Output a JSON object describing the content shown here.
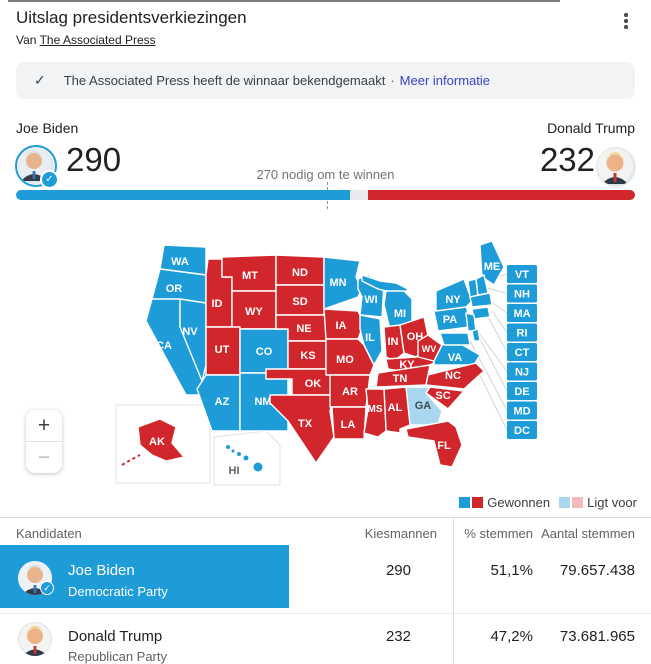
{
  "header": {
    "title": "Uitslag presidentsverkiezingen",
    "source_prefix": "Van",
    "source_link": "The Associated Press"
  },
  "banner": {
    "text": "The Associated Press heeft de winnaar bekendgemaakt",
    "separator": "·",
    "link_label": "Meer informatie"
  },
  "scoreboard": {
    "left_name": "Joe Biden",
    "left_votes": "290",
    "right_name": "Donald Trump",
    "right_votes": "232",
    "threshold_note": "270 nodig om te winnen",
    "bar": {
      "blue_pct": 53.9,
      "gray_pct": 3.0,
      "red_pct": 43.1,
      "marker_pct": 50.2
    }
  },
  "map": {
    "zoom_in_label": "+",
    "zoom_out_label": "−",
    "states": [
      {
        "abbr": "WA",
        "result": "dem"
      },
      {
        "abbr": "OR",
        "result": "dem"
      },
      {
        "abbr": "CA",
        "result": "dem"
      },
      {
        "abbr": "NV",
        "result": "dem"
      },
      {
        "abbr": "ID",
        "result": "rep"
      },
      {
        "abbr": "MT",
        "result": "rep"
      },
      {
        "abbr": "WY",
        "result": "rep"
      },
      {
        "abbr": "UT",
        "result": "rep"
      },
      {
        "abbr": "CO",
        "result": "dem"
      },
      {
        "abbr": "AZ",
        "result": "dem"
      },
      {
        "abbr": "NM",
        "result": "dem"
      },
      {
        "abbr": "ND",
        "result": "rep"
      },
      {
        "abbr": "SD",
        "result": "rep"
      },
      {
        "abbr": "NE",
        "result": "rep"
      },
      {
        "abbr": "KS",
        "result": "rep"
      },
      {
        "abbr": "OK",
        "result": "rep"
      },
      {
        "abbr": "TX",
        "result": "rep"
      },
      {
        "abbr": "MN",
        "result": "dem"
      },
      {
        "abbr": "IA",
        "result": "rep"
      },
      {
        "abbr": "MO",
        "result": "rep"
      },
      {
        "abbr": "AR",
        "result": "rep"
      },
      {
        "abbr": "LA",
        "result": "rep"
      },
      {
        "abbr": "WI",
        "result": "dem"
      },
      {
        "abbr": "IL",
        "result": "dem"
      },
      {
        "abbr": "MI",
        "result": "dem"
      },
      {
        "abbr": "IN",
        "result": "rep"
      },
      {
        "abbr": "OH",
        "result": "rep"
      },
      {
        "abbr": "KY",
        "result": "rep"
      },
      {
        "abbr": "TN",
        "result": "rep"
      },
      {
        "abbr": "WV",
        "result": "rep"
      },
      {
        "abbr": "VA",
        "result": "dem"
      },
      {
        "abbr": "PA",
        "result": "dem"
      },
      {
        "abbr": "NY",
        "result": "dem"
      },
      {
        "abbr": "ME",
        "result": "dem"
      },
      {
        "abbr": "VT",
        "result": "dem"
      },
      {
        "abbr": "NH",
        "result": "dem"
      },
      {
        "abbr": "MA",
        "result": "dem"
      },
      {
        "abbr": "RI",
        "result": "dem"
      },
      {
        "abbr": "CT",
        "result": "dem"
      },
      {
        "abbr": "NJ",
        "result": "dem"
      },
      {
        "abbr": "DE",
        "result": "dem"
      },
      {
        "abbr": "MD",
        "result": "dem"
      },
      {
        "abbr": "DC",
        "result": "dem"
      },
      {
        "abbr": "NC",
        "result": "rep"
      },
      {
        "abbr": "SC",
        "result": "rep"
      },
      {
        "abbr": "GA",
        "result": "lead_dem"
      },
      {
        "abbr": "AL",
        "result": "rep"
      },
      {
        "abbr": "MS",
        "result": "rep"
      },
      {
        "abbr": "FL",
        "result": "rep"
      },
      {
        "abbr": "AK",
        "result": "rep"
      },
      {
        "abbr": "HI",
        "result": "dem"
      }
    ],
    "callouts": [
      "VT",
      "NH",
      "MA",
      "RI",
      "CT",
      "NJ",
      "DE",
      "MD",
      "DC"
    ]
  },
  "legend": {
    "won_label": "Gewonnen",
    "leading_label": "Ligt voor"
  },
  "table": {
    "headers": [
      "Kandidaten",
      "Kiesmannen",
      "% stemmen",
      "Aantal stemmen"
    ],
    "rows": [
      {
        "name": "Joe Biden",
        "party": "Democratic Party",
        "electors": "290",
        "pct": "51,1%",
        "votes": "79.657.438"
      },
      {
        "name": "Donald Trump",
        "party": "Republican Party",
        "electors": "232",
        "pct": "47,2%",
        "votes": "73.681.965"
      }
    ]
  },
  "colors": {
    "dem": "#1e9cd8",
    "rep": "#d0262c",
    "lead_dem": "#a8d7ef",
    "lead_rep": "#f4b9bc",
    "bar_gray": "#e8eaed"
  }
}
